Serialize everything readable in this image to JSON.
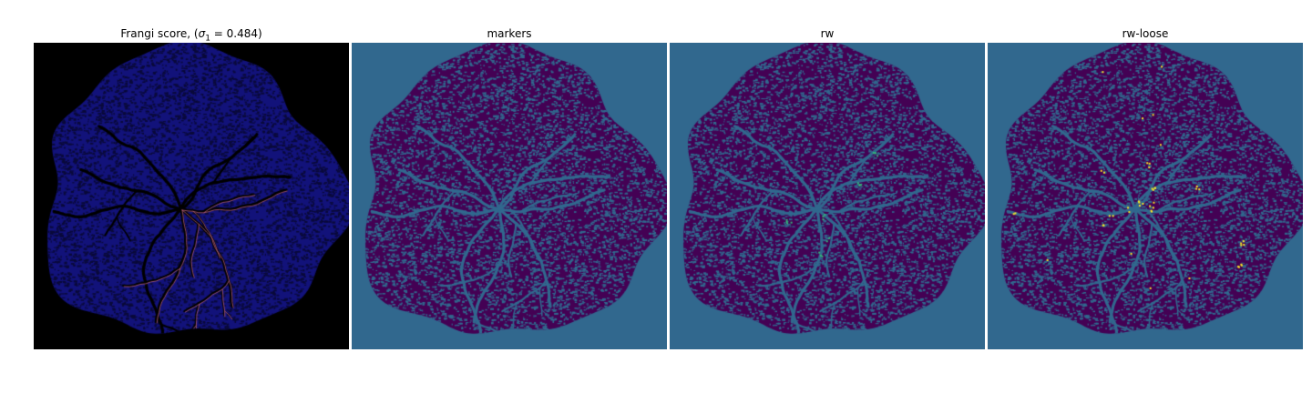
{
  "figure": {
    "panels": [
      {
        "id": "frangi",
        "title_main": "Frangi score, (",
        "title_symbol": "σ",
        "title_sub": "1",
        "title_rest": " = 0.484)",
        "background": "#000000",
        "blob_color": "#12127a",
        "texture_color": "#0a0a3a",
        "vessel_color": "#000000",
        "highlight_color": "#c86a8a"
      },
      {
        "id": "markers",
        "title": "markers",
        "background": "#31688e",
        "blob_color": "#440154",
        "texture_color": "#31688e",
        "vessel_color": "#31688e",
        "highlight_color": ""
      },
      {
        "id": "rw",
        "title": "rw",
        "background": "#31688e",
        "blob_color": "#440154",
        "texture_color": "#31688e",
        "vessel_color": "#31688e",
        "highlight_color": "#35b779"
      },
      {
        "id": "rw-loose",
        "title": "rw-loose",
        "background": "#31688e",
        "blob_color": "#440154",
        "texture_color": "#31688e",
        "vessel_color": "#31688e",
        "highlight_color": "#fde725"
      }
    ]
  }
}
